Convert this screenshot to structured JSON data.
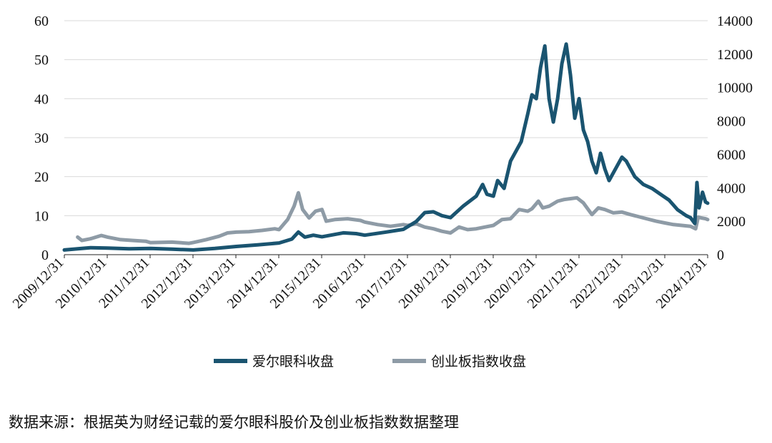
{
  "chart_data": {
    "type": "line",
    "title": "",
    "x_categories": [
      "2009/12/31",
      "2010/12/31",
      "2011/12/31",
      "2012/12/31",
      "2013/12/31",
      "2014/12/31",
      "2015/12/31",
      "2016/12/31",
      "2017/12/31",
      "2018/12/31",
      "2019/12/31",
      "2020/12/31",
      "2021/12/31",
      "2022/12/31",
      "2023/12/31",
      "2024/12/31"
    ],
    "y_left": {
      "ylim": [
        0,
        60
      ],
      "ticks": [
        0,
        10,
        20,
        30,
        40,
        50,
        60
      ]
    },
    "y_right": {
      "ylim": [
        0,
        14000
      ],
      "ticks": [
        0,
        2000,
        4000,
        6000,
        8000,
        10000,
        12000,
        14000
      ]
    },
    "grid": true,
    "legend_position": "bottom",
    "series": [
      {
        "name": "爱尔眼科收盘",
        "axis": "left",
        "color": "#1a5470",
        "points": [
          [
            2009.99,
            1.2
          ],
          [
            2010.3,
            1.5
          ],
          [
            2010.6,
            1.8
          ],
          [
            2011.0,
            1.7
          ],
          [
            2011.5,
            1.5
          ],
          [
            2012.0,
            1.6
          ],
          [
            2012.5,
            1.4
          ],
          [
            2013.0,
            1.2
          ],
          [
            2013.5,
            1.6
          ],
          [
            2014.0,
            2.1
          ],
          [
            2014.5,
            2.5
          ],
          [
            2015.0,
            3.0
          ],
          [
            2015.3,
            4.0
          ],
          [
            2015.45,
            5.8
          ],
          [
            2015.6,
            4.5
          ],
          [
            2015.8,
            5.0
          ],
          [
            2016.0,
            4.6
          ],
          [
            2016.5,
            5.6
          ],
          [
            2016.8,
            5.4
          ],
          [
            2017.0,
            5.0
          ],
          [
            2017.5,
            5.8
          ],
          [
            2017.9,
            6.5
          ],
          [
            2018.2,
            8.5
          ],
          [
            2018.4,
            10.8
          ],
          [
            2018.6,
            11.0
          ],
          [
            2018.8,
            10.0
          ],
          [
            2019.0,
            9.5
          ],
          [
            2019.3,
            12.5
          ],
          [
            2019.6,
            15.0
          ],
          [
            2019.75,
            18.0
          ],
          [
            2019.85,
            15.5
          ],
          [
            2020.0,
            15.0
          ],
          [
            2020.1,
            19.0
          ],
          [
            2020.25,
            17.0
          ],
          [
            2020.4,
            24.0
          ],
          [
            2020.55,
            27.0
          ],
          [
            2020.65,
            29.0
          ],
          [
            2020.8,
            36.0
          ],
          [
            2020.9,
            41.0
          ],
          [
            2021.0,
            40.0
          ],
          [
            2021.1,
            48.0
          ],
          [
            2021.2,
            53.5
          ],
          [
            2021.3,
            40.0
          ],
          [
            2021.4,
            34.0
          ],
          [
            2021.5,
            40.0
          ],
          [
            2021.6,
            49.0
          ],
          [
            2021.7,
            54.0
          ],
          [
            2021.8,
            46.0
          ],
          [
            2021.9,
            35.0
          ],
          [
            2022.0,
            40.0
          ],
          [
            2022.1,
            32.0
          ],
          [
            2022.2,
            29.0
          ],
          [
            2022.3,
            24.0
          ],
          [
            2022.4,
            21.0
          ],
          [
            2022.5,
            26.0
          ],
          [
            2022.6,
            22.0
          ],
          [
            2022.7,
            19.0
          ],
          [
            2022.85,
            22.0
          ],
          [
            2023.0,
            25.0
          ],
          [
            2023.1,
            24.0
          ],
          [
            2023.3,
            20.0
          ],
          [
            2023.5,
            18.0
          ],
          [
            2023.7,
            17.0
          ],
          [
            2023.9,
            15.5
          ],
          [
            2024.1,
            14.0
          ],
          [
            2024.3,
            11.5
          ],
          [
            2024.5,
            10.0
          ],
          [
            2024.6,
            9.5
          ],
          [
            2024.7,
            8.0
          ],
          [
            2024.75,
            18.5
          ],
          [
            2024.8,
            12.0
          ],
          [
            2024.88,
            16.0
          ],
          [
            2024.95,
            13.5
          ],
          [
            2025.0,
            13.2
          ]
        ]
      },
      {
        "name": "创业板指数收盘",
        "axis": "right",
        "color": "#8e9ba6",
        "points": [
          [
            2010.3,
            1050
          ],
          [
            2010.4,
            850
          ],
          [
            2010.6,
            950
          ],
          [
            2010.85,
            1150
          ],
          [
            2011.0,
            1050
          ],
          [
            2011.3,
            900
          ],
          [
            2011.6,
            850
          ],
          [
            2011.9,
            800
          ],
          [
            2012.0,
            720
          ],
          [
            2012.5,
            750
          ],
          [
            2012.9,
            680
          ],
          [
            2013.0,
            730
          ],
          [
            2013.3,
            900
          ],
          [
            2013.6,
            1100
          ],
          [
            2013.8,
            1300
          ],
          [
            2014.0,
            1350
          ],
          [
            2014.3,
            1380
          ],
          [
            2014.6,
            1450
          ],
          [
            2014.9,
            1550
          ],
          [
            2015.0,
            1500
          ],
          [
            2015.2,
            2100
          ],
          [
            2015.35,
            2900
          ],
          [
            2015.45,
            3700
          ],
          [
            2015.55,
            2700
          ],
          [
            2015.7,
            2200
          ],
          [
            2015.85,
            2600
          ],
          [
            2016.0,
            2700
          ],
          [
            2016.1,
            2000
          ],
          [
            2016.3,
            2100
          ],
          [
            2016.6,
            2150
          ],
          [
            2016.9,
            2050
          ],
          [
            2017.0,
            1950
          ],
          [
            2017.3,
            1800
          ],
          [
            2017.6,
            1700
          ],
          [
            2017.9,
            1800
          ],
          [
            2018.0,
            1750
          ],
          [
            2018.2,
            1850
          ],
          [
            2018.4,
            1650
          ],
          [
            2018.6,
            1550
          ],
          [
            2018.8,
            1400
          ],
          [
            2019.0,
            1300
          ],
          [
            2019.2,
            1650
          ],
          [
            2019.4,
            1500
          ],
          [
            2019.6,
            1550
          ],
          [
            2019.8,
            1650
          ],
          [
            2020.0,
            1750
          ],
          [
            2020.2,
            2100
          ],
          [
            2020.4,
            2150
          ],
          [
            2020.6,
            2700
          ],
          [
            2020.8,
            2600
          ],
          [
            2020.9,
            2750
          ],
          [
            2021.05,
            3200
          ],
          [
            2021.15,
            2800
          ],
          [
            2021.3,
            2900
          ],
          [
            2021.5,
            3200
          ],
          [
            2021.65,
            3300
          ],
          [
            2021.8,
            3350
          ],
          [
            2021.95,
            3400
          ],
          [
            2022.1,
            3100
          ],
          [
            2022.3,
            2400
          ],
          [
            2022.45,
            2800
          ],
          [
            2022.6,
            2700
          ],
          [
            2022.8,
            2500
          ],
          [
            2023.0,
            2550
          ],
          [
            2023.2,
            2400
          ],
          [
            2023.5,
            2200
          ],
          [
            2023.8,
            2000
          ],
          [
            2024.0,
            1900
          ],
          [
            2024.2,
            1800
          ],
          [
            2024.4,
            1750
          ],
          [
            2024.6,
            1700
          ],
          [
            2024.72,
            1550
          ],
          [
            2024.78,
            2250
          ],
          [
            2024.85,
            2200
          ],
          [
            2024.95,
            2150
          ],
          [
            2025.0,
            2100
          ]
        ]
      }
    ]
  },
  "legend": {
    "series1_label": "爱尔眼科收盘",
    "series2_label": "创业板指数收盘"
  },
  "footnote": "数据来源：根据英为财经记载的爱尔眼科股价及创业板指数数据整理",
  "colors": {
    "series1": "#1a5470",
    "series2": "#8e9ba6",
    "grid": "#d9d9d9",
    "axis": "#222222"
  }
}
